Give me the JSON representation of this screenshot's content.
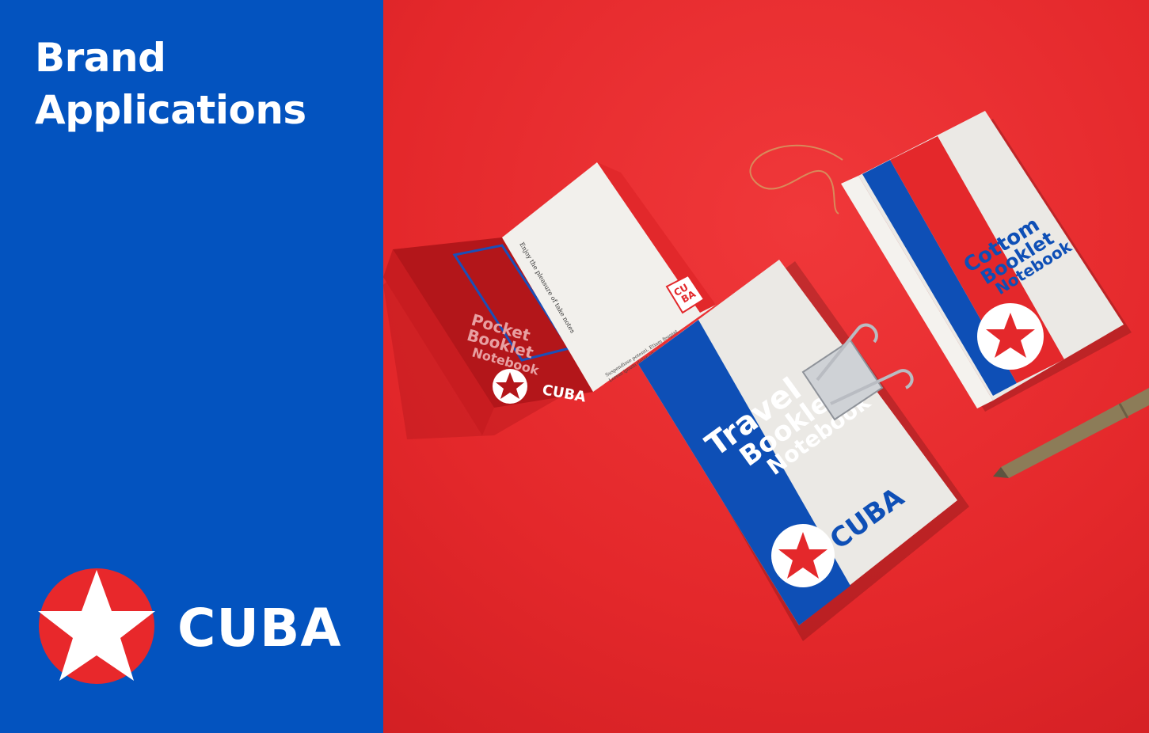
{
  "heading": {
    "line1": "Brand",
    "line2": "Applications"
  },
  "logo": {
    "wordmark": "CUBA",
    "icon": "star-circle-icon"
  },
  "mockup": {
    "pocket_open": {
      "left_line1": "Pocket",
      "left_line2": "Booklet",
      "left_line3": "Notebook",
      "left_brand": "CUBA",
      "right_header": "Enjoy the pleasure of take notes",
      "right_badge_top": "CU",
      "right_badge_bottom": "BA",
      "right_footer1": "Suspendisse potenti. Etiam feugiat.",
      "right_footer2": "Lorem ipsum dolor sit amet, consectetur"
    },
    "travel": {
      "line1": "Travel",
      "line2": "Booklet",
      "line3": "Notebook",
      "brand": "CUBA"
    },
    "cottom": {
      "line1": "Cottom",
      "line2": "Booklet",
      "line3": "Notebook"
    }
  },
  "colors": {
    "blue": "#0353bf",
    "red": "#e8282b",
    "white": "#ffffff",
    "paper": "#e9e7e3"
  }
}
